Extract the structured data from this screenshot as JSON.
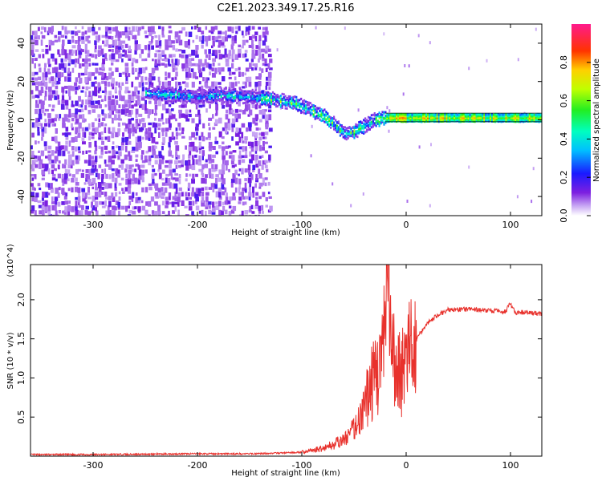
{
  "title": "C2E1.2023.349.17.25.R16",
  "chart_data": [
    {
      "type": "heatmap",
      "xlabel": "Height of straight line (km)",
      "ylabel": "Frequency (Hz)",
      "xlim": [
        -360,
        130
      ],
      "ylim": [
        -50,
        50
      ],
      "x_ticks": [
        -300,
        -200,
        -100,
        0,
        100
      ],
      "y_ticks": [
        -40,
        -20,
        0,
        20,
        40
      ],
      "colorbar": {
        "label": "Normalized spectral amplitude",
        "range": [
          0,
          1
        ],
        "ticks": [
          "0.0",
          "0.2",
          "0.4",
          "0.6",
          "0.8"
        ],
        "colormap": "rainbow"
      },
      "signal_track": [
        {
          "x": -245,
          "y": 14
        },
        {
          "x": -200,
          "y": 12
        },
        {
          "x": -180,
          "y": 13
        },
        {
          "x": -150,
          "y": 12
        },
        {
          "x": -130,
          "y": 11
        },
        {
          "x": -110,
          "y": 9
        },
        {
          "x": -95,
          "y": 6
        },
        {
          "x": -80,
          "y": 2
        },
        {
          "x": -70,
          "y": -2
        },
        {
          "x": -60,
          "y": -7
        },
        {
          "x": -50,
          "y": -6
        },
        {
          "x": -40,
          "y": -3
        },
        {
          "x": -30,
          "y": 0
        },
        {
          "x": -20,
          "y": 1
        },
        {
          "x": 0,
          "y": 1
        },
        {
          "x": 50,
          "y": 1
        },
        {
          "x": 100,
          "y": 1
        },
        {
          "x": 130,
          "y": 1
        }
      ]
    },
    {
      "type": "line",
      "xlabel": "Height of straight line (km)",
      "ylabel": "SNR (10 * v/v)",
      "y_multiplier": "(x10^4)",
      "xlim": [
        -360,
        130
      ],
      "ylim": [
        0,
        2.45
      ],
      "x_ticks": [
        -300,
        -200,
        -100,
        0,
        100
      ],
      "y_ticks": [
        "0.5",
        "1.0",
        "1.5",
        "2.0"
      ],
      "y_tick_values": [
        0.5,
        1.0,
        1.5,
        2.0
      ],
      "series": [
        {
          "color": "#e8312c",
          "x": [
            -360,
            -300,
            -200,
            -150,
            -120,
            -100,
            -80,
            -60,
            -50,
            -40,
            -35,
            -30,
            -25,
            -20,
            -17,
            -15,
            -10,
            -5,
            0,
            5,
            10,
            20,
            30,
            40,
            60,
            80,
            95,
            100,
            105,
            110,
            120,
            130
          ],
          "y": [
            0.02,
            0.02,
            0.03,
            0.03,
            0.04,
            0.05,
            0.1,
            0.2,
            0.35,
            0.6,
            0.9,
            1.0,
            1.2,
            1.5,
            2.45,
            1.4,
            1.1,
            1.1,
            1.2,
            1.35,
            1.5,
            1.7,
            1.8,
            1.87,
            1.88,
            1.86,
            1.85,
            1.95,
            1.82,
            1.84,
            1.83,
            1.82
          ]
        }
      ]
    }
  ]
}
